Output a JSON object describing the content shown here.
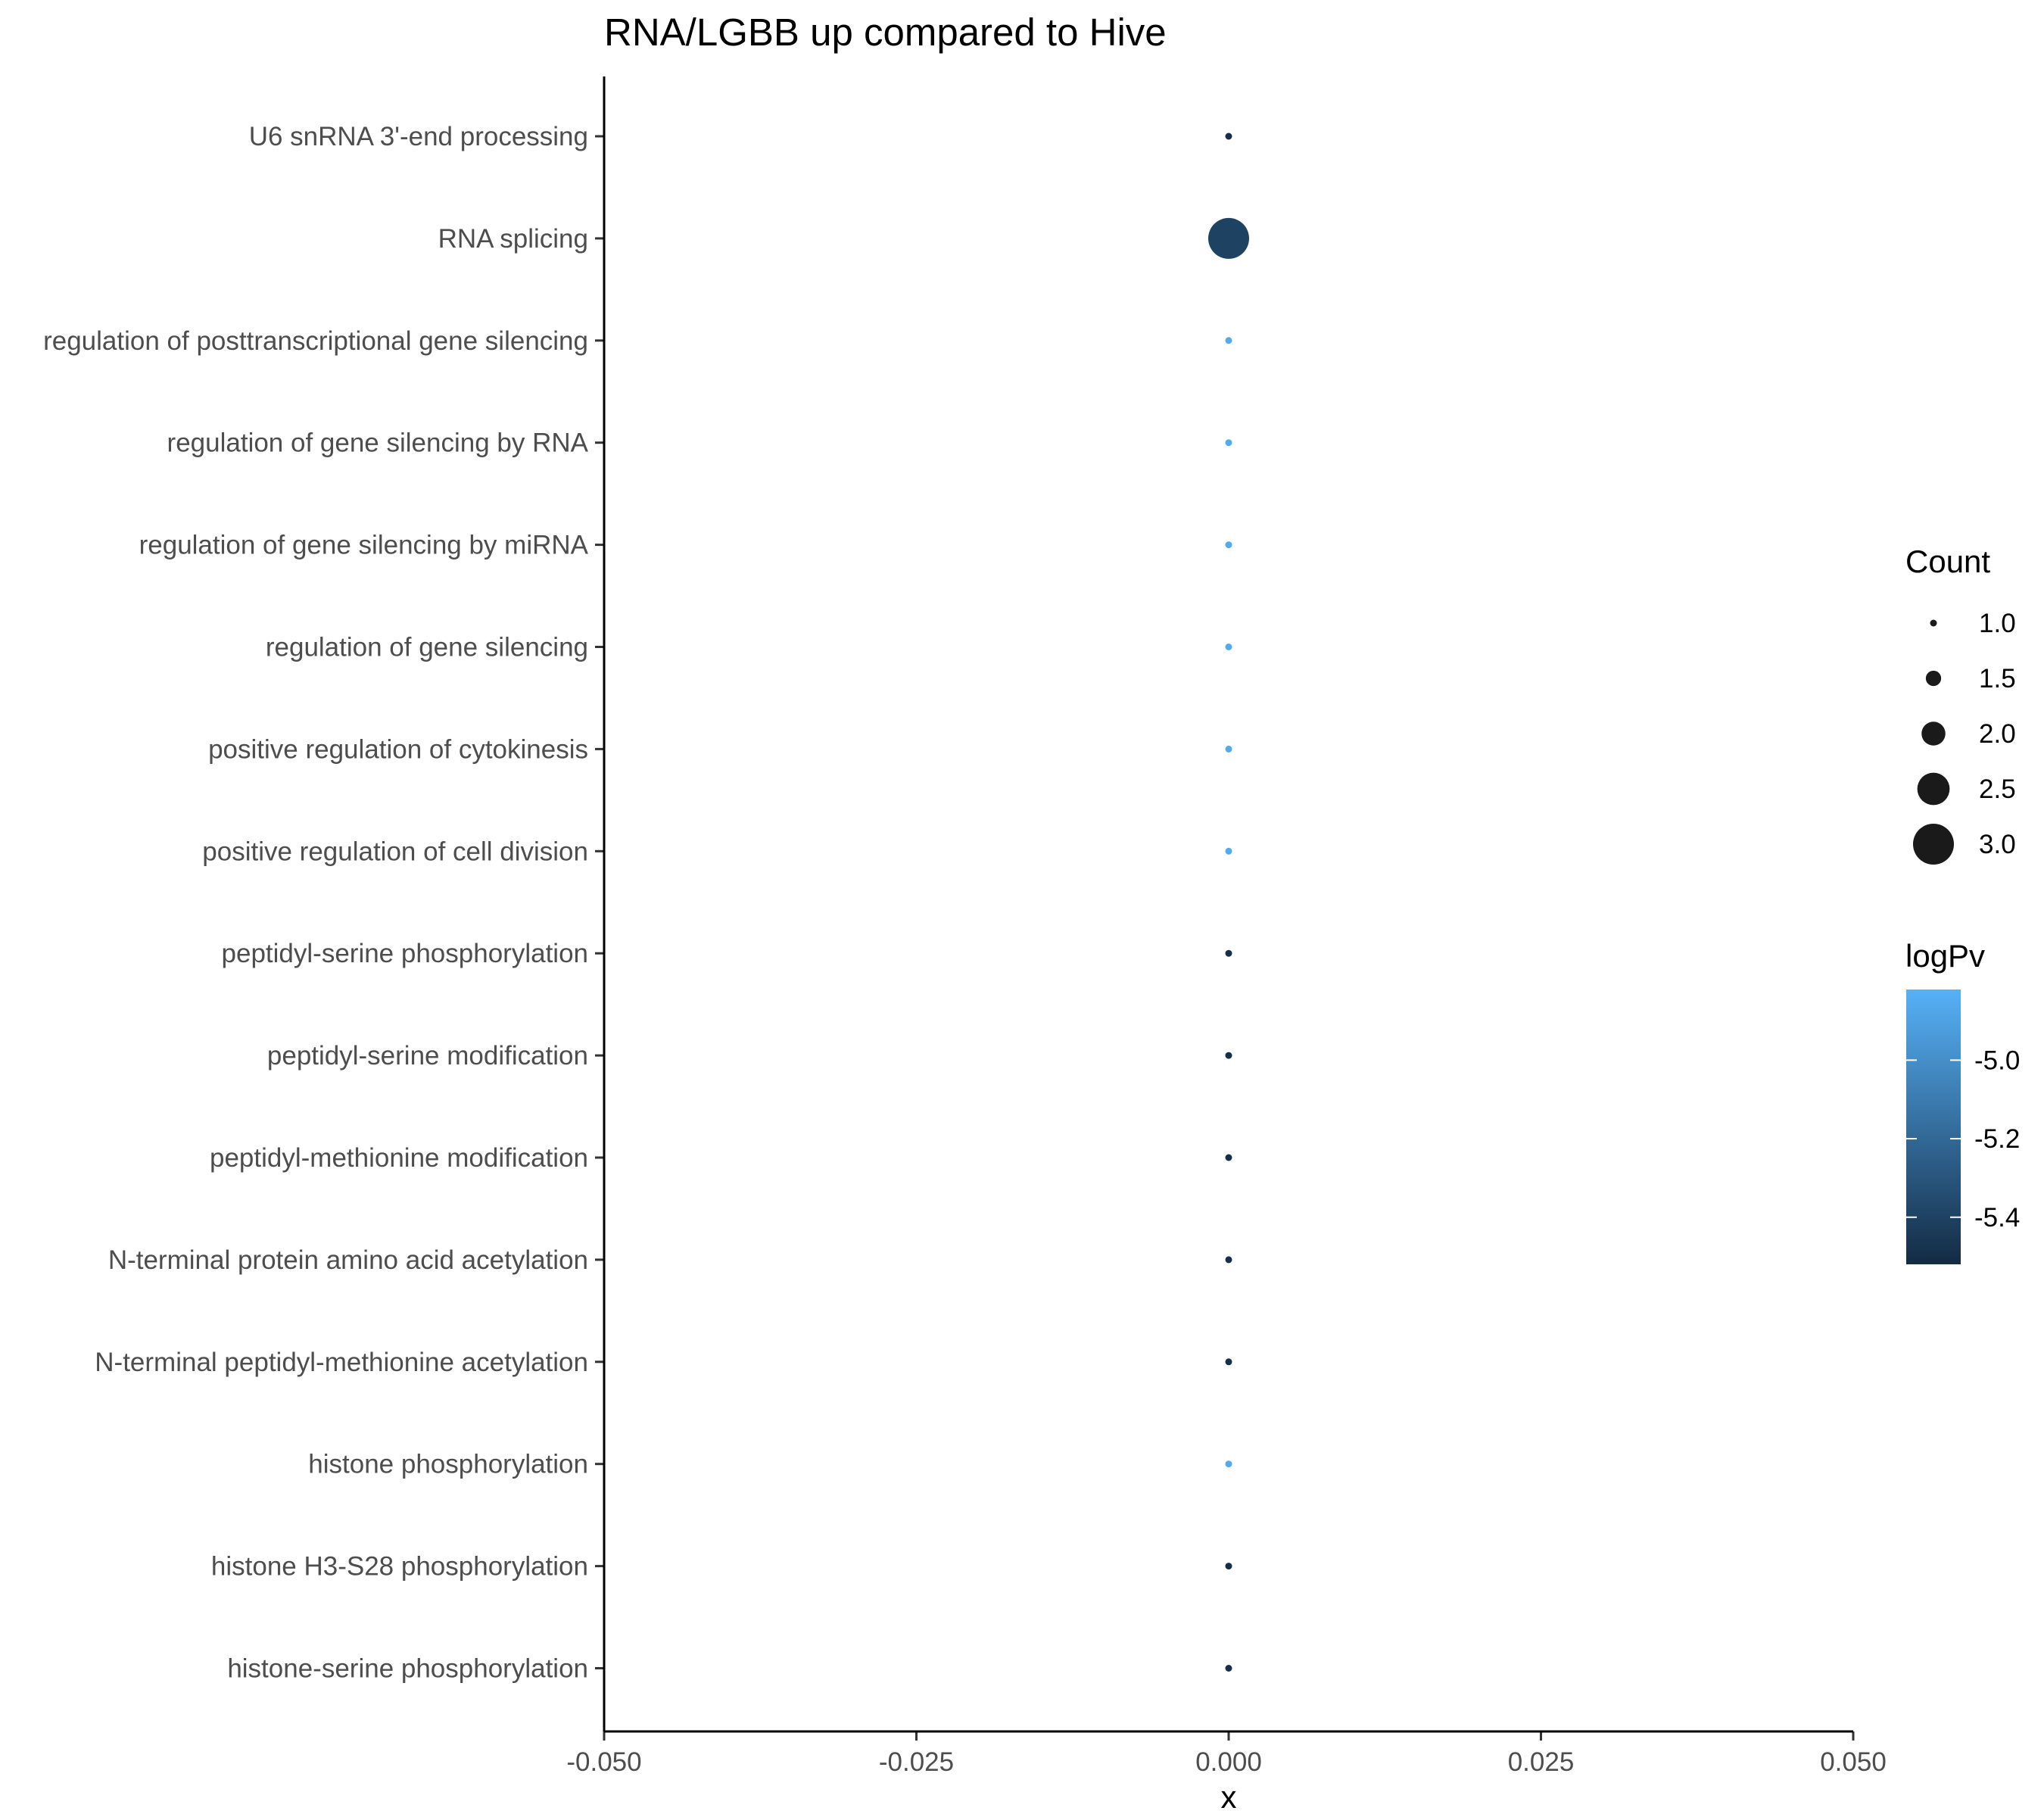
{
  "chart_data": {
    "type": "scatter",
    "title": "RNA/LGBB up compared to Hive",
    "xlabel": "x",
    "ylabel": "",
    "xlim": [
      -0.05,
      0.05
    ],
    "xticks": [
      "-0.050",
      "-0.025",
      "0.000",
      "0.025",
      "0.050"
    ],
    "xtick_values": [
      -0.05,
      -0.025,
      0,
      0.025,
      0.05
    ],
    "grid": false,
    "legend_position": "right",
    "categories": [
      "U6 snRNA 3'-end processing",
      "RNA splicing",
      "regulation of posttranscriptional gene silencing",
      "regulation of gene silencing by RNA",
      "regulation of gene silencing by miRNA",
      "regulation of gene silencing",
      "positive regulation of cytokinesis",
      "positive regulation of cell division",
      "peptidyl-serine phosphorylation",
      "peptidyl-serine modification",
      "peptidyl-methionine modification",
      "N-terminal protein amino acid acetylation",
      "N-terminal peptidyl-methionine acetylation",
      "histone phosphorylation",
      "histone H3-S28 phosphorylation",
      "histone-serine phosphorylation"
    ],
    "points": [
      {
        "x": 0,
        "count": 1,
        "logPv": -5.5
      },
      {
        "x": 0,
        "count": 3,
        "logPv": -5.4
      },
      {
        "x": 0,
        "count": 1,
        "logPv": -4.85
      },
      {
        "x": 0,
        "count": 1,
        "logPv": -4.85
      },
      {
        "x": 0,
        "count": 1,
        "logPv": -4.85
      },
      {
        "x": 0,
        "count": 1,
        "logPv": -4.85
      },
      {
        "x": 0,
        "count": 1,
        "logPv": -4.85
      },
      {
        "x": 0,
        "count": 1,
        "logPv": -4.85
      },
      {
        "x": 0,
        "count": 1,
        "logPv": -5.5
      },
      {
        "x": 0,
        "count": 1,
        "logPv": -5.5
      },
      {
        "x": 0,
        "count": 1,
        "logPv": -5.5
      },
      {
        "x": 0,
        "count": 1,
        "logPv": -5.5
      },
      {
        "x": 0,
        "count": 1,
        "logPv": -5.5
      },
      {
        "x": 0,
        "count": 1,
        "logPv": -4.85
      },
      {
        "x": 0,
        "count": 1,
        "logPv": -5.5
      },
      {
        "x": 0,
        "count": 1,
        "logPv": -5.5
      }
    ],
    "size_legend": {
      "title": "Count",
      "values": [
        1.0,
        1.5,
        2.0,
        2.5,
        3.0
      ],
      "labels": [
        "1.0",
        "1.5",
        "2.0",
        "2.5",
        "3.0"
      ]
    },
    "color_legend": {
      "title": "logPv",
      "range": [
        -5.52,
        -4.82
      ],
      "ticks": [
        -5.0,
        -5.2,
        -5.4
      ],
      "labels": [
        "-5.0",
        "-5.2",
        "-5.4"
      ],
      "low_color": "#132b43",
      "high_color": "#56b1f7"
    }
  }
}
